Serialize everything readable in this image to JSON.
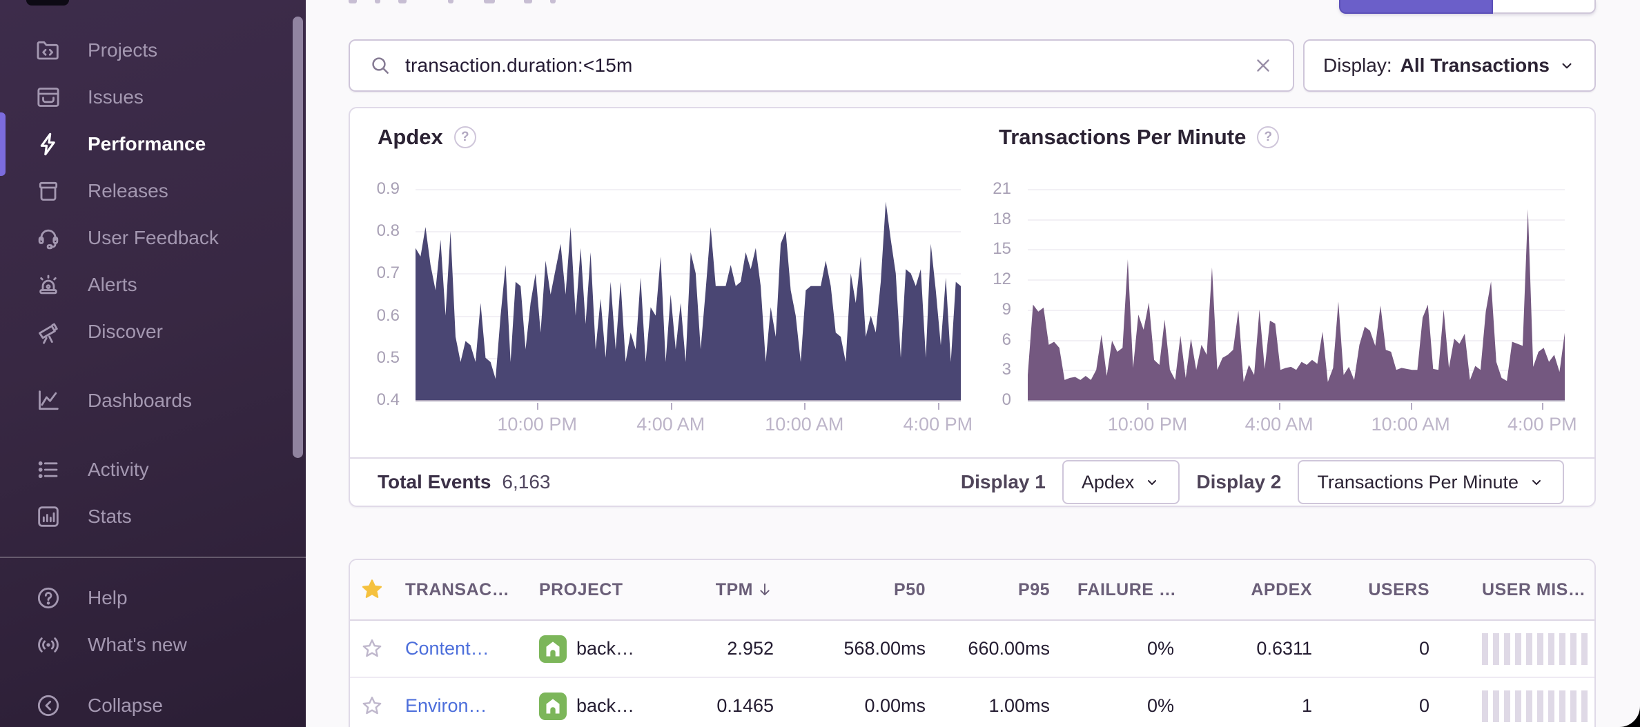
{
  "sidebar": {
    "active_item": "Performance",
    "nav_groups": [
      [
        {
          "label": "Projects",
          "icon": "projects"
        },
        {
          "label": "Issues",
          "icon": "issues"
        },
        {
          "label": "Performance",
          "icon": "performance",
          "active": true
        },
        {
          "label": "Releases",
          "icon": "releases"
        },
        {
          "label": "User Feedback",
          "icon": "user-feedback"
        },
        {
          "label": "Alerts",
          "icon": "alerts"
        },
        {
          "label": "Discover",
          "icon": "discover"
        }
      ],
      [
        {
          "label": "Dashboards",
          "icon": "dashboards"
        }
      ],
      [
        {
          "label": "Activity",
          "icon": "activity"
        },
        {
          "label": "Stats",
          "icon": "stats"
        }
      ]
    ],
    "footer_groups": [
      [
        {
          "label": "Help",
          "icon": "help"
        },
        {
          "label": "What's new",
          "icon": "whats-new"
        }
      ],
      [
        {
          "label": "Collapse",
          "icon": "collapse"
        }
      ]
    ]
  },
  "search": {
    "query": "transaction.duration:<15m"
  },
  "display_filter": {
    "label": "Display:",
    "value": "All Transactions"
  },
  "charts": {
    "apdex": {
      "title": "Apdex",
      "y_ticks": [
        "0.9",
        "0.8",
        "0.7",
        "0.6",
        "0.5",
        "0.4"
      ],
      "x_ticks": [
        "10:00 PM",
        "4:00 AM",
        "10:00 AM",
        "4:00 PM"
      ],
      "ymin": 0.4,
      "ymax": 0.9,
      "fill": "#4A4673",
      "values": [
        0.76,
        0.74,
        0.81,
        0.72,
        0.66,
        0.78,
        0.6,
        0.8,
        0.55,
        0.49,
        0.54,
        0.53,
        0.49,
        0.63,
        0.5,
        0.49,
        0.45,
        0.6,
        0.72,
        0.49,
        0.68,
        0.67,
        0.52,
        0.63,
        0.7,
        0.56,
        0.73,
        0.65,
        0.71,
        0.77,
        0.65,
        0.81,
        0.6,
        0.76,
        0.58,
        0.75,
        0.52,
        0.64,
        0.5,
        0.68,
        0.52,
        0.68,
        0.49,
        0.56,
        0.52,
        0.69,
        0.49,
        0.62,
        0.6,
        0.74,
        0.49,
        0.65,
        0.52,
        0.63,
        0.49,
        0.75,
        0.7,
        0.52,
        0.66,
        0.81,
        0.67,
        0.67,
        0.67,
        0.72,
        0.67,
        0.68,
        0.75,
        0.71,
        0.76,
        0.67,
        0.49,
        0.62,
        0.55,
        0.77,
        0.8,
        0.66,
        0.6,
        0.49,
        0.66,
        0.67,
        0.67,
        0.67,
        0.73,
        0.67,
        0.56,
        0.55,
        0.49,
        0.7,
        0.63,
        0.74,
        0.55,
        0.6,
        0.56,
        0.68,
        0.87,
        0.78,
        0.7,
        0.5,
        0.71,
        0.7,
        0.67,
        0.71,
        0.5,
        0.77,
        0.66,
        0.53,
        0.69,
        0.49,
        0.68,
        0.67
      ]
    },
    "tpm": {
      "title": "Transactions Per Minute",
      "y_ticks": [
        "21",
        "18",
        "15",
        "12",
        "9",
        "6",
        "3",
        "0"
      ],
      "x_ticks": [
        "10:00 PM",
        "4:00 AM",
        "10:00 AM",
        "4:00 PM"
      ],
      "ymin": 0,
      "ymax": 21,
      "fill": "#745880",
      "values": [
        2.5,
        9.5,
        8.8,
        9.2,
        5.5,
        5.8,
        5.2,
        2.0,
        2.2,
        2.3,
        2.0,
        2.4,
        2.0,
        3.0,
        6.5,
        2.4,
        5.9,
        4.8,
        5.2,
        14.0,
        3.2,
        8.5,
        7.0,
        9.7,
        4.0,
        3.5,
        8.0,
        3.0,
        2.0,
        6.4,
        2.2,
        6.1,
        3.0,
        5.5,
        4.5,
        13.2,
        3.0,
        4.2,
        4.5,
        5.0,
        8.9,
        1.8,
        3.5,
        2.5,
        9.0,
        3.1,
        7.9,
        7.6,
        3.0,
        3.2,
        3.3,
        3.0,
        3.8,
        3.5,
        4.0,
        3.6,
        6.8,
        1.8,
        3.2,
        9.8,
        2.5,
        3.3,
        2.0,
        5.5,
        7.3,
        6.9,
        5.4,
        9.4,
        5.0,
        4.8,
        3.0,
        3.2,
        3.1,
        3.0,
        3.0,
        8.2,
        9.5,
        3.1,
        3.0,
        9.0,
        3.2,
        6.1,
        5.6,
        6.6,
        2.0,
        3.4,
        3.0,
        8.8,
        11.8,
        3.8,
        2.2,
        1.9,
        5.8,
        5.6,
        5.4,
        19.0,
        3.3,
        4.8,
        5.2,
        3.8,
        4.5,
        2.8,
        6.7
      ]
    }
  },
  "summary": {
    "total_events_label": "Total Events",
    "total_events_value": "6,163",
    "display1_label": "Display 1",
    "display1_value": "Apdex",
    "display2_label": "Display 2",
    "display2_value": "Transactions Per Minute"
  },
  "table": {
    "headers": [
      "TRANSAC…",
      "PROJECT",
      "TPM",
      "P50",
      "P95",
      "FAILURE …",
      "APDEX",
      "USERS",
      "USER MIS…"
    ],
    "sorted_column": "TPM",
    "rows": [
      {
        "transaction": "Content…",
        "project": "back…",
        "tpm": "2.952",
        "p50": "568.00ms",
        "p95": "660.00ms",
        "failure": "0%",
        "apdex": "0.6311",
        "users": "0",
        "misery_bars": 10
      },
      {
        "transaction": "Environ…",
        "project": "back…",
        "tpm": "0.1465",
        "p50": "0.00ms",
        "p95": "1.00ms",
        "failure": "0%",
        "apdex": "1",
        "users": "0",
        "misery_bars": 10
      }
    ]
  },
  "colors": {
    "accent": "#6B5FC9",
    "link": "#4C6EDB",
    "apdex_fill": "#4A4673",
    "tpm_fill": "#745880",
    "star_yellow": "#F5C13E",
    "project_green": "#7CB65A"
  }
}
